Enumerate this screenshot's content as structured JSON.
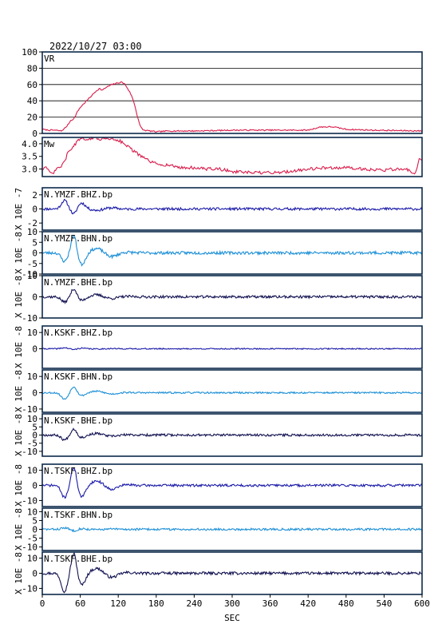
{
  "title": "2022/10/27 03:00",
  "x_axis_label": "SEC",
  "colors": {
    "frame": "#0d2a4a",
    "vr_line": "#d81b4a",
    "mw_line": "#d81b4a",
    "bhz": "#1a1aa8",
    "bhn": "#1c8fd6",
    "bhe": "#101050"
  },
  "chart_data": {
    "type": "line",
    "xlim": [
      0,
      600
    ],
    "xticks": [
      0,
      60,
      120,
      180,
      240,
      300,
      360,
      420,
      480,
      540,
      600
    ],
    "panels": [
      {
        "id": "vr",
        "label": "VR",
        "ylim": [
          0,
          100
        ],
        "yticks": [
          0,
          20,
          40,
          60,
          80,
          100
        ],
        "grid": true,
        "color_key": "vr_line",
        "x": [
          0,
          10,
          20,
          30,
          35,
          40,
          45,
          50,
          55,
          60,
          65,
          70,
          75,
          80,
          85,
          90,
          95,
          100,
          105,
          110,
          115,
          120,
          125,
          130,
          135,
          140,
          145,
          150,
          155,
          160,
          170,
          180,
          200,
          240,
          300,
          360,
          420,
          440,
          460,
          480,
          520,
          600
        ],
        "values": [
          5,
          4,
          4,
          3,
          6,
          10,
          16,
          18,
          26,
          32,
          36,
          40,
          44,
          48,
          52,
          55,
          53,
          56,
          58,
          60,
          61,
          62,
          63,
          61,
          55,
          48,
          38,
          22,
          8,
          4,
          3,
          2,
          3,
          3,
          4,
          4,
          4,
          8,
          8,
          5,
          4,
          3
        ]
      },
      {
        "id": "mw",
        "label": "Mw",
        "ylim": [
          2.7,
          4.25
        ],
        "yticks": [
          3.0,
          3.5,
          4.0
        ],
        "ytick_labels": [
          "3.0",
          "3.5",
          "4.0"
        ],
        "grid": false,
        "color_key": "mw_line",
        "x": [
          0,
          5,
          10,
          15,
          20,
          25,
          30,
          35,
          40,
          45,
          50,
          55,
          60,
          65,
          70,
          75,
          80,
          90,
          100,
          110,
          120,
          130,
          135,
          140,
          150,
          160,
          170,
          180,
          200,
          220,
          240,
          260,
          280,
          300,
          330,
          360,
          390,
          420,
          450,
          480,
          510,
          540,
          560,
          580,
          590,
          596,
          600
        ],
        "values": [
          3.0,
          3.1,
          2.9,
          2.8,
          2.9,
          3.05,
          3.1,
          3.3,
          3.6,
          3.8,
          3.9,
          4.1,
          4.15,
          4.2,
          4.2,
          4.15,
          4.25,
          4.2,
          4.2,
          4.2,
          4.15,
          4.0,
          3.9,
          3.8,
          3.6,
          3.45,
          3.3,
          3.2,
          3.15,
          3.05,
          3.05,
          3.0,
          3.0,
          2.9,
          2.85,
          2.85,
          2.9,
          3.0,
          3.05,
          3.05,
          3.0,
          2.95,
          3.0,
          2.95,
          2.8,
          3.4,
          3.4
        ]
      },
      {
        "id": "ymzf_bhz",
        "label": "N.YMZF.BHZ.bp",
        "ylim": [
          -3,
          3
        ],
        "yticks": [
          -2,
          0,
          2
        ],
        "ytick_labels": [
          "-2",
          "0",
          "2"
        ],
        "unit_label": "X 10E -7",
        "color_key": "bhz",
        "amp": [
          1.2,
          -0.8,
          1.6
        ],
        "noise": 0.18,
        "seed": 11
      },
      {
        "id": "ymzf_bhn",
        "label": "N.YMZF.BHN.bp",
        "ylim": [
          -10,
          10
        ],
        "yticks": [
          -10,
          -5,
          0,
          5,
          10
        ],
        "ytick_labels": [
          "-10",
          "-5",
          "0",
          "5",
          "10"
        ],
        "unit_label": "X 10E -8",
        "color_key": "bhn",
        "amp": [
          -4,
          9,
          -10
        ],
        "noise": 0.7,
        "seed": 23
      },
      {
        "id": "ymzf_bhe",
        "label": "N.YMZF.BHE.bp",
        "ylim": [
          -10,
          10
        ],
        "yticks": [
          -10,
          0,
          10
        ],
        "ytick_labels": [
          "-10",
          "0",
          "10"
        ],
        "unit_label": "X 10E -8",
        "color_key": "bhe",
        "amp": [
          -2.5,
          4,
          -3
        ],
        "noise": 0.6,
        "seed": 37
      },
      {
        "id": "kskf_bhz",
        "label": "N.KSKF.BHZ.bp",
        "ylim": [
          -12,
          14
        ],
        "yticks": [
          0,
          10
        ],
        "ytick_labels": [
          "0",
          "10"
        ],
        "unit_label": "X 10E -8",
        "color_key": "bhz",
        "amp": [
          0.6,
          -0.5,
          0.7
        ],
        "noise": 0.35,
        "seed": 41
      },
      {
        "id": "kskf_bhn",
        "label": "N.KSKF.BHN.bp",
        "ylim": [
          -12,
          14
        ],
        "yticks": [
          -10,
          0,
          10
        ],
        "ytick_labels": [
          "-10",
          "0",
          "10"
        ],
        "unit_label": "X 10E -8",
        "color_key": "bhn",
        "amp": [
          -4,
          4,
          -3
        ],
        "noise": 0.5,
        "seed": 53
      },
      {
        "id": "kskf_bhe",
        "label": "N.KSKF.BHE.bp",
        "ylim": [
          -13,
          13
        ],
        "yticks": [
          -10,
          -5,
          0,
          5,
          10
        ],
        "ytick_labels": [
          "-10",
          "-5",
          "0",
          "5",
          "10"
        ],
        "unit_label": "X 10E -8",
        "color_key": "bhe",
        "amp": [
          -3,
          4,
          -2.5
        ],
        "noise": 0.7,
        "seed": 67
      },
      {
        "id": "tskf_bhz",
        "label": "N.TSKF.BHZ.bp",
        "ylim": [
          -14,
          14
        ],
        "yticks": [
          -10,
          0,
          10
        ],
        "ytick_labels": [
          "-10",
          "0",
          "10"
        ],
        "unit_label": "X 10E -8",
        "color_key": "bhz",
        "amp": [
          -8,
          13,
          -14
        ],
        "noise": 0.8,
        "seed": 71
      },
      {
        "id": "tskf_bhn",
        "label": "N.TSKF.BHN.bp",
        "ylim": [
          -12,
          12
        ],
        "yticks": [
          -10,
          -5,
          0,
          5,
          10
        ],
        "ytick_labels": [
          "-10",
          "-5",
          "0",
          "5",
          "10"
        ],
        "unit_label": "X 10E -8",
        "color_key": "bhn",
        "amp": [
          0.8,
          -0.8,
          0.6
        ],
        "noise": 0.6,
        "seed": 83
      },
      {
        "id": "tskf_bhe",
        "label": "N.TSKF.BHE.bp",
        "ylim": [
          -14,
          14
        ],
        "yticks": [
          -10,
          0,
          10
        ],
        "ytick_labels": [
          "-10",
          "0",
          "10"
        ],
        "unit_label": "X 10E -8",
        "color_key": "bhe",
        "amp": [
          -12,
          14,
          -14
        ],
        "noise": 0.9,
        "seed": 97
      }
    ]
  }
}
